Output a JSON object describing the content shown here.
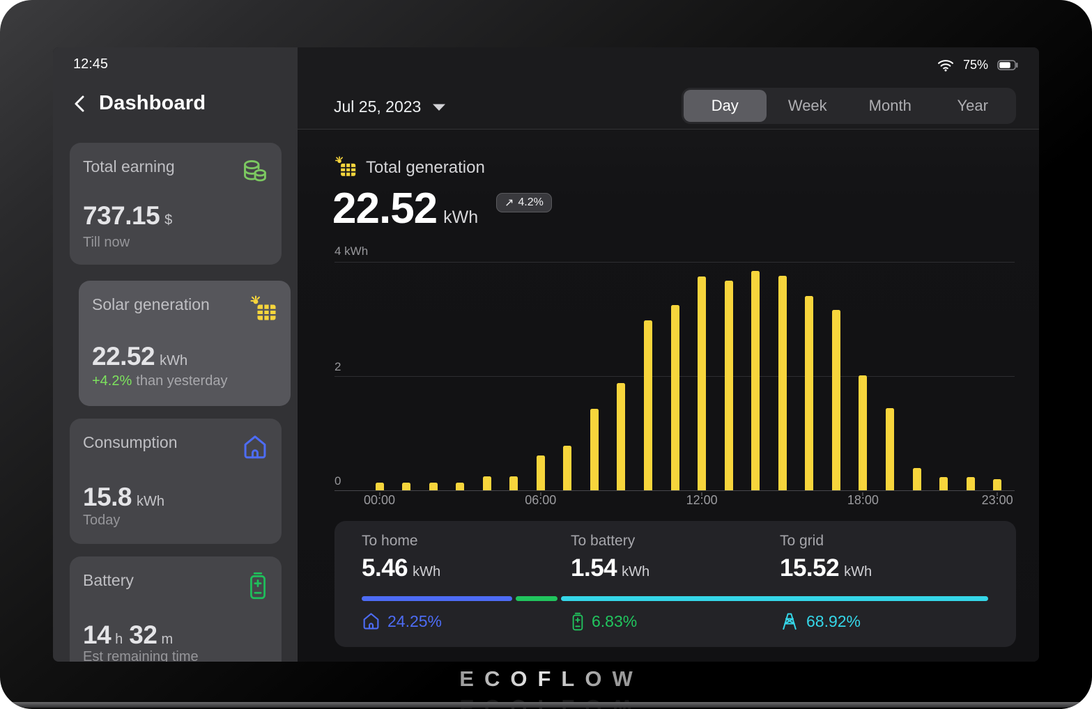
{
  "status_bar": {
    "time": "12:45",
    "battery_percent": "75%"
  },
  "sidebar": {
    "title": "Dashboard",
    "cards": [
      {
        "title": "Total earning",
        "icon": "coins-icon",
        "value": "737.15",
        "unit": "$",
        "subtitle": "Till now"
      },
      {
        "title": "Solar generation",
        "icon": "solar-panel-icon",
        "value": "22.52",
        "unit": "kWh",
        "delta": "+4.2%",
        "delta_suffix": "than yesterday",
        "selected": true
      },
      {
        "title": "Consumption",
        "icon": "house-icon",
        "value": "15.8",
        "unit": "kWh",
        "subtitle": "Today"
      },
      {
        "title": "Battery",
        "icon": "battery-icon",
        "value_hours": "14",
        "unit_hours": "h",
        "value_minutes": "32",
        "unit_minutes": "m",
        "subtitle": "Est remaining time"
      }
    ]
  },
  "header": {
    "date": "Jul 25, 2023",
    "tabs": [
      "Day",
      "Week",
      "Month",
      "Year"
    ],
    "active_tab": "Day"
  },
  "generation": {
    "title": "Total generation",
    "value": "22.52",
    "unit": "kWh",
    "delta_arrow": "↗",
    "delta_badge": "4.2%"
  },
  "chart_data": {
    "type": "bar",
    "title": "Total generation",
    "xlabel": "",
    "ylabel": "kWh",
    "ylim": [
      0,
      4
    ],
    "yticks": [
      0,
      2,
      4
    ],
    "ytick_labels": [
      "0",
      "2",
      "4 kWh"
    ],
    "grid": "horizontal",
    "legend": "none",
    "bar_color": "#F7D53C",
    "xtick_indices": [
      0,
      6,
      12,
      18,
      23
    ],
    "categories": [
      "00:00",
      "01:00",
      "02:00",
      "03:00",
      "04:00",
      "05:00",
      "06:00",
      "07:00",
      "08:00",
      "09:00",
      "10:00",
      "11:00",
      "12:00",
      "13:00",
      "14:00",
      "15:00",
      "16:00",
      "17:00",
      "18:00",
      "19:00",
      "20:00",
      "21:00",
      "22:00",
      "23:00"
    ],
    "values": [
      0.13,
      0.13,
      0.13,
      0.13,
      0.24,
      0.24,
      0.61,
      0.78,
      1.42,
      1.87,
      2.97,
      3.24,
      3.73,
      3.66,
      3.83,
      3.74,
      3.39,
      3.15,
      2.0,
      1.43,
      0.39,
      0.23,
      0.23,
      0.2
    ]
  },
  "distribution": {
    "items": [
      {
        "label": "To home",
        "value": "5.46",
        "unit": "kWh",
        "percent": "24.25%",
        "icon": "house-icon",
        "color": "#4D6CF5"
      },
      {
        "label": "To battery",
        "value": "1.54",
        "unit": "kWh",
        "percent": "6.83%",
        "icon": "battery-icon",
        "color": "#21C55E"
      },
      {
        "label": "To grid",
        "value": "15.52",
        "unit": "kWh",
        "percent": "68.92%",
        "icon": "pylon-icon",
        "color": "#35D6E8"
      }
    ]
  },
  "footer": {
    "brand": "ECOFLOW"
  }
}
